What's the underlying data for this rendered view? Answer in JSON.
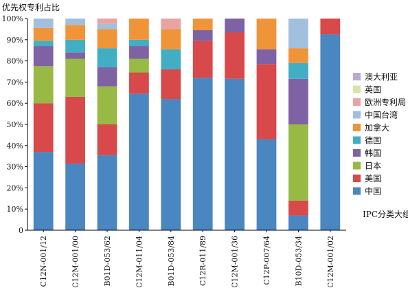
{
  "chart_data": {
    "type": "bar",
    "stacked": true,
    "title": "",
    "ylabel": "优先权专利占比",
    "xlabel": "IPC分类大组",
    "ylim": [
      0,
      100
    ],
    "y_ticks": [
      "0",
      "10%",
      "20%",
      "30%",
      "40%",
      "50%",
      "60%",
      "70%",
      "80%",
      "90%",
      "100%"
    ],
    "grid": false,
    "legend_position": "right",
    "categories": [
      "C12N-001/12",
      "C12M-001/00",
      "B01D-053/62",
      "C12M-011/04",
      "B01D-053/84",
      "C12R-011/89",
      "C12M-001/36",
      "C12P-007/64",
      "B10D-053/34",
      "C12M-001/02"
    ],
    "series": [
      {
        "name": "中国",
        "color": "#4a86c0",
        "values": [
          37,
          31.5,
          35.5,
          64.5,
          62,
          72,
          71.5,
          43,
          7,
          92.5
        ]
      },
      {
        "name": "美国",
        "color": "#d7494a",
        "values": [
          23,
          31.5,
          14.5,
          10,
          14,
          17.5,
          22,
          35.5,
          7,
          7.5
        ]
      },
      {
        "name": "日本",
        "color": "#98b944",
        "values": [
          17.5,
          18,
          18,
          6.5,
          0,
          0,
          0,
          0,
          36,
          0
        ]
      },
      {
        "name": "韩国",
        "color": "#7f62a4",
        "values": [
          9.5,
          3,
          9,
          6,
          0,
          5,
          6.5,
          7,
          21.5,
          0
        ]
      },
      {
        "name": "德国",
        "color": "#41aec4",
        "values": [
          2.5,
          6,
          9,
          3,
          9.5,
          0,
          0,
          0,
          7.5,
          0
        ]
      },
      {
        "name": "加拿大",
        "color": "#f0943a",
        "values": [
          6,
          7,
          9,
          10,
          9.5,
          5.5,
          0,
          14.5,
          7,
          0
        ]
      },
      {
        "name": "中国台湾",
        "color": "#a2c0dd",
        "values": [
          4.5,
          3,
          2.5,
          0,
          0,
          0,
          0,
          0,
          14,
          0
        ]
      },
      {
        "name": "欧洲专利局",
        "color": "#e8a3a3",
        "values": [
          0,
          0,
          2.5,
          0,
          5,
          0,
          0,
          0,
          0,
          0
        ]
      },
      {
        "name": "英国",
        "color": "#d9e3a6",
        "values": [
          0,
          0,
          0,
          0,
          0,
          0,
          0,
          0,
          0,
          0
        ]
      },
      {
        "name": "澳大利亚",
        "color": "#b9acd0",
        "values": [
          0,
          0,
          0,
          0,
          0,
          0,
          0,
          0,
          0,
          0
        ]
      }
    ]
  }
}
